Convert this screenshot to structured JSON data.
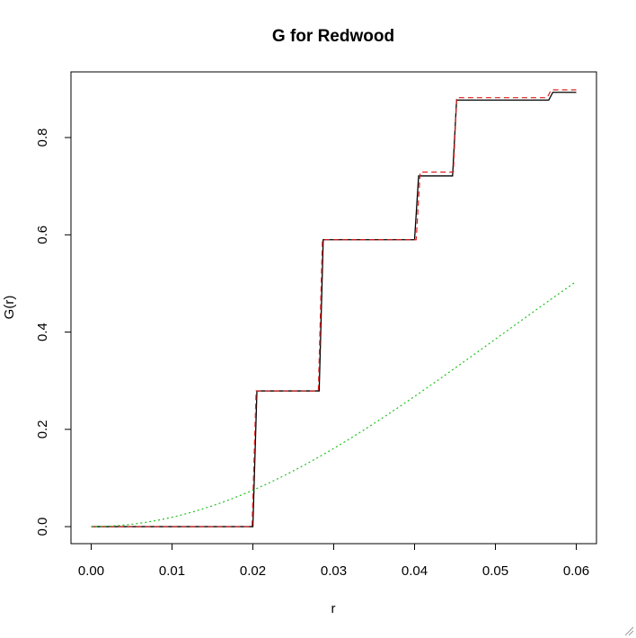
{
  "chart_data": {
    "type": "line",
    "title": "G for Redwood",
    "xlabel": "r",
    "ylabel": "G(r)",
    "xlim": [
      -0.0025,
      0.0625
    ],
    "ylim": [
      -0.035,
      0.935
    ],
    "x_ticks": [
      0.0,
      0.01,
      0.02,
      0.03,
      0.04,
      0.05,
      0.06
    ],
    "x_tick_labels": [
      "0.00",
      "0.01",
      "0.02",
      "0.03",
      "0.04",
      "0.05",
      "0.06"
    ],
    "y_ticks": [
      0.0,
      0.2,
      0.4,
      0.6,
      0.8
    ],
    "y_tick_labels": [
      "0.0",
      "0.2",
      "0.4",
      "0.6",
      "0.8"
    ],
    "grid": false,
    "legend": "none",
    "series": [
      {
        "style": "solid",
        "color": "#000000",
        "points": [
          [
            0.0,
            0.0
          ],
          [
            0.02,
            0.0
          ],
          [
            0.0205,
            0.279
          ],
          [
            0.0282,
            0.279
          ],
          [
            0.0287,
            0.59
          ],
          [
            0.04,
            0.59
          ],
          [
            0.0405,
            0.721
          ],
          [
            0.0447,
            0.721
          ],
          [
            0.0452,
            0.877
          ],
          [
            0.0566,
            0.877
          ],
          [
            0.0571,
            0.893
          ],
          [
            0.06,
            0.893
          ]
        ]
      },
      {
        "style": "dashed",
        "color": "#df1f1f",
        "points": [
          [
            0.0,
            0.0
          ],
          [
            0.0199,
            0.0
          ],
          [
            0.0204,
            0.279
          ],
          [
            0.0281,
            0.279
          ],
          [
            0.0286,
            0.59
          ],
          [
            0.0402,
            0.59
          ],
          [
            0.0407,
            0.729
          ],
          [
            0.0448,
            0.729
          ],
          [
            0.0452,
            0.882
          ],
          [
            0.0564,
            0.882
          ],
          [
            0.0569,
            0.898
          ],
          [
            0.06,
            0.898
          ]
        ]
      },
      {
        "style": "dotted",
        "color": "#20c020",
        "function": "theoretical",
        "x_start": 0.0,
        "x_end": 0.06,
        "lambda": 62
      }
    ]
  }
}
